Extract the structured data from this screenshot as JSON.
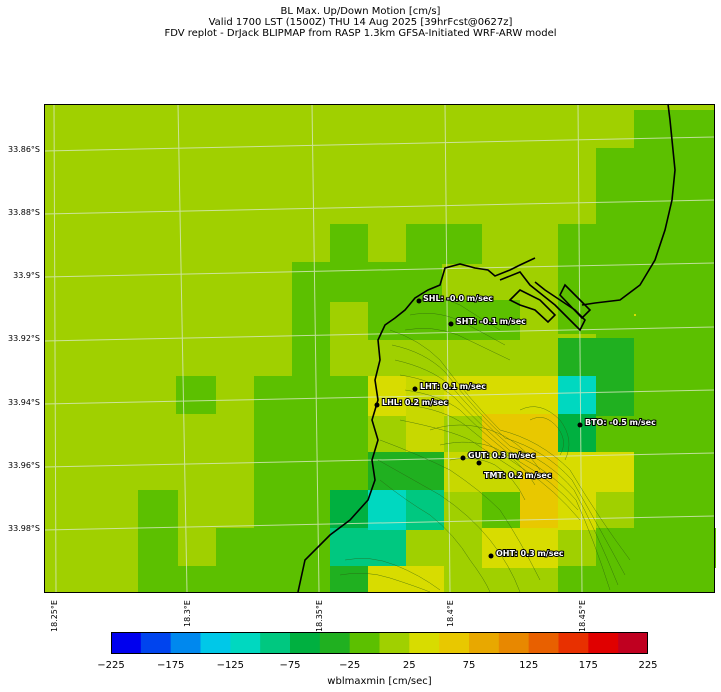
{
  "title_lines": [
    "BL Max. Up/Down Motion [cm/s]",
    "Valid 1700 LST (1500Z) THU 14 Aug 2025 [39hrFcst@0627z]",
    "FDV replot - DrJack BLIPMAP from RASP 1.3km GFSA-Initiated WRF-ARW model"
  ],
  "lat_labels": [
    "33.86°S",
    "33.88°S",
    "33.9°S",
    "33.92°S",
    "33.94°S",
    "33.96°S",
    "33.98°S"
  ],
  "lon_labels": [
    "18.25°E",
    "18.3°E",
    "18.35°E",
    "18.4°E",
    "18.45°E"
  ],
  "stations": [
    {
      "id": "shl",
      "label": "SHL: -0.0 m/sec"
    },
    {
      "id": "sht",
      "label": "SHT: -0.1 m/sec"
    },
    {
      "id": "lht",
      "label": "LHT: 0.1 m/sec"
    },
    {
      "id": "lhl",
      "label": "LHL: 0.2 m/sec"
    },
    {
      "id": "bto",
      "label": "BTO: -0.5 m/sec"
    },
    {
      "id": "gut",
      "label": "GUT: 0.3 m/sec"
    },
    {
      "id": "tmt",
      "label": "TMT: 0.2 m/sec"
    },
    {
      "id": "oht",
      "label": "OHT: 0.3 m/sec"
    }
  ],
  "colorbar": {
    "label": "wblmaxmin [cm/sec]",
    "tick_labels": [
      "−225",
      "−175",
      "−125",
      "−75",
      "−25",
      "25",
      "75",
      "125",
      "175",
      "225"
    ],
    "colors": [
      "#0000ee",
      "#0044ee",
      "#0088ee",
      "#00c8e8",
      "#00d8c0",
      "#00c880",
      "#00b040",
      "#20b020",
      "#5cc000",
      "#a0d000",
      "#d8dc00",
      "#e8c800",
      "#e8a800",
      "#e88800",
      "#e86000",
      "#e83000",
      "#e00000",
      "#c00020"
    ]
  }
}
